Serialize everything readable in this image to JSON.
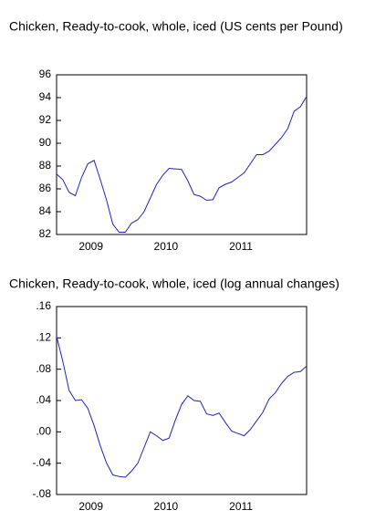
{
  "chart_data": [
    {
      "type": "line",
      "title": "Chicken, Ready-to-cook, whole, iced (US cents per Pound)",
      "categories": [
        null,
        null,
        null,
        null,
        null,
        null,
        "2009",
        null,
        null,
        null,
        null,
        null,
        null,
        null,
        null,
        null,
        null,
        null,
        "2010",
        null,
        null,
        null,
        null,
        null,
        null,
        null,
        null,
        null,
        null,
        null,
        "2011",
        null,
        null,
        null,
        null,
        null,
        null,
        null,
        null,
        null,
        null
      ],
      "values": [
        87.3,
        86.8,
        85.7,
        85.4,
        87.0,
        88.2,
        88.5,
        86.8,
        85.0,
        82.9,
        82.2,
        82.2,
        83.0,
        83.3,
        84.0,
        85.2,
        86.4,
        87.2,
        87.8,
        87.75,
        87.7,
        86.7,
        85.5,
        85.35,
        85.0,
        85.05,
        86.1,
        86.4,
        86.6,
        87.0,
        87.4,
        88.2,
        89.0,
        89.0,
        89.3,
        89.9,
        90.5,
        91.3,
        92.8,
        93.2,
        94.1
      ],
      "color": "#2222bb",
      "ylim": [
        82,
        96
      ],
      "yticks": [
        82,
        84,
        86,
        88,
        90,
        92,
        94,
        96
      ]
    },
    {
      "type": "line",
      "title": "Chicken, Ready-to-cook, whole, iced (log annual changes)",
      "categories": [
        null,
        null,
        null,
        null,
        null,
        null,
        "2009",
        null,
        null,
        null,
        null,
        null,
        null,
        null,
        null,
        null,
        null,
        null,
        "2010",
        null,
        null,
        null,
        null,
        null,
        null,
        null,
        null,
        null,
        null,
        null,
        "2011",
        null,
        null,
        null,
        null,
        null,
        null,
        null,
        null,
        null,
        null
      ],
      "values": [
        0.122,
        0.09,
        0.053,
        0.04,
        0.041,
        0.03,
        0.008,
        -0.018,
        -0.04,
        -0.055,
        -0.057,
        -0.058,
        -0.05,
        -0.04,
        -0.02,
        0.0,
        -0.005,
        -0.011,
        -0.008,
        0.015,
        0.035,
        0.046,
        0.04,
        0.039,
        0.023,
        0.021,
        0.024,
        0.012,
        0.001,
        -0.002,
        -0.005,
        0.003,
        0.014,
        0.025,
        0.042,
        0.05,
        0.062,
        0.071,
        0.076,
        0.077,
        0.084
      ],
      "color": "#2222bb",
      "ylim": [
        -0.08,
        0.16
      ],
      "yticks": [
        {
          "value": -0.08,
          "label": "-.08"
        },
        {
          "value": -0.04,
          "label": "-.04"
        },
        {
          "value": 0,
          "label": ".00"
        },
        {
          "value": 0.04,
          "label": ".04"
        },
        {
          "value": 0.08,
          "label": ".08"
        },
        {
          "value": 0.12,
          "label": ".12"
        },
        {
          "value": 0.16,
          "label": ".16"
        }
      ]
    }
  ]
}
